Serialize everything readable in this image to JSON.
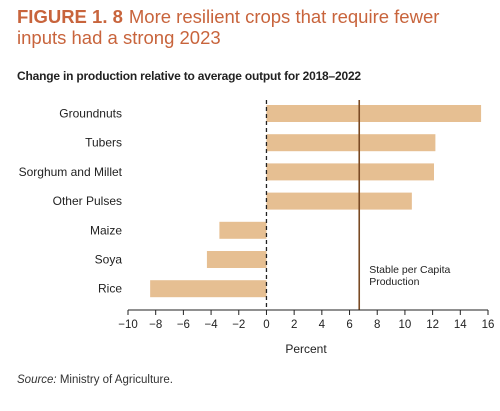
{
  "figure": {
    "number": "FIGURE 1. 8",
    "title": "More resilient crops that require fewer inputs had a strong 2023",
    "subtitle": "Change in production relative to average output for 2018–2022",
    "source_label": "Source:",
    "source_text": "Ministry of Agriculture."
  },
  "chart_data": {
    "type": "bar",
    "orientation": "horizontal",
    "categories": [
      "Groundnuts",
      "Tubers",
      "Sorghum and Millet",
      "Other Pulses",
      "Maize",
      "Soya",
      "Rice"
    ],
    "values": [
      15.5,
      12.2,
      12.1,
      10.5,
      -3.4,
      -4.3,
      -8.4
    ],
    "xlabel": "Percent",
    "xlim": [
      -10,
      16
    ],
    "xticks": [
      -10,
      -8,
      -6,
      -4,
      -2,
      0,
      2,
      4,
      6,
      8,
      10,
      12,
      14,
      16
    ],
    "xtick_labels": [
      "−10",
      "−8",
      "−6",
      "−4",
      "−2",
      "0",
      "2",
      "4",
      "6",
      "8",
      "10",
      "12",
      "14",
      "16"
    ],
    "reference_line": {
      "value": 6.7,
      "label_lines": [
        "Stable per Capita",
        "Production"
      ]
    },
    "zero_line_style": "dashed",
    "grid": false,
    "colors": {
      "bar": "#e6bf92",
      "reference": "#7a4a24",
      "axis": "#222222",
      "text": "#222222"
    }
  }
}
